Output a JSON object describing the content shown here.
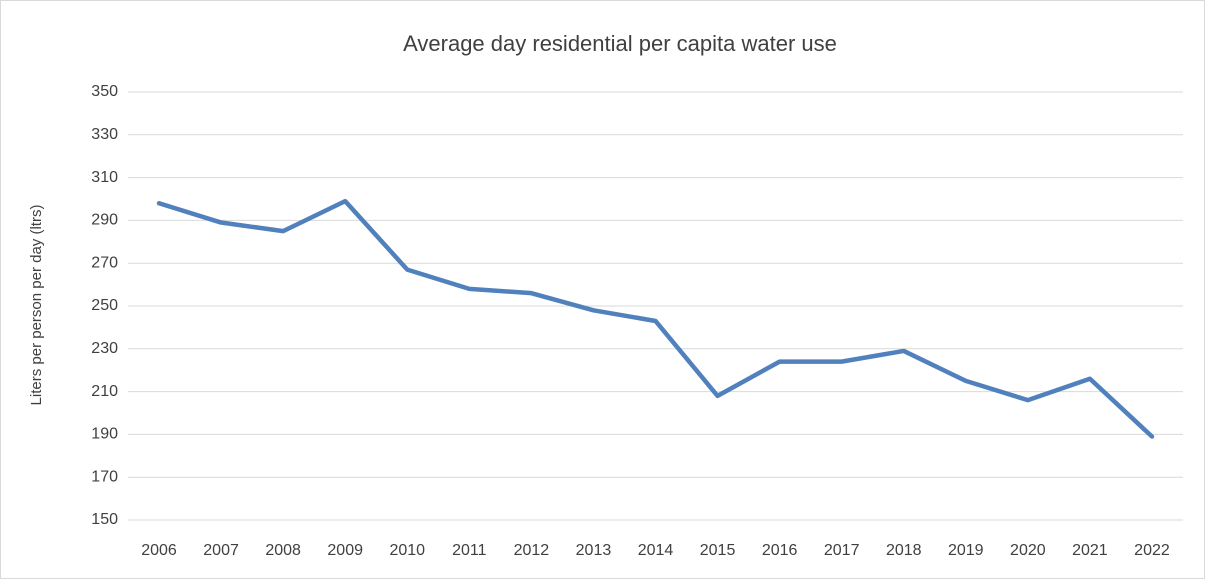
{
  "chart_data": {
    "type": "line",
    "title": "Average day residential per capita water use",
    "y_label": "Liters per person per day (ltrs)",
    "categories": [
      "2006",
      "2007",
      "2008",
      "2009",
      "2010",
      "2011",
      "2012",
      "2013",
      "2014",
      "2015",
      "2016",
      "2017",
      "2018",
      "2019",
      "2020",
      "2021",
      "2022"
    ],
    "values": [
      298,
      289,
      285,
      299,
      267,
      258,
      256,
      248,
      243,
      208,
      224,
      224,
      229,
      215,
      206,
      216,
      189
    ],
    "color": "#5181bd",
    "ylim": [
      150,
      350
    ],
    "yticks": [
      150,
      170,
      190,
      210,
      230,
      250,
      270,
      290,
      310,
      330,
      350
    ],
    "grid": true
  }
}
